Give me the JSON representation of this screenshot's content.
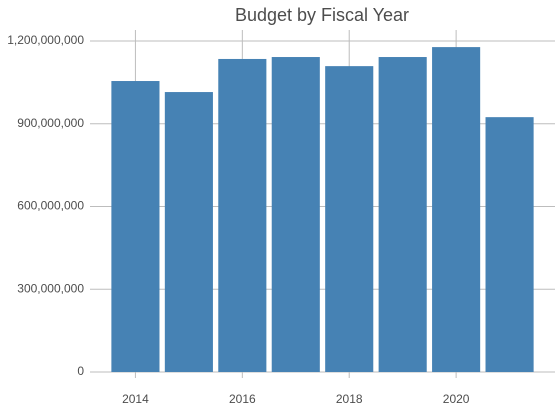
{
  "chart_data": {
    "type": "bar",
    "title": "Budget by Fiscal Year",
    "x": [
      2014,
      2015,
      2016,
      2017,
      2018,
      2019,
      2020,
      2021
    ],
    "values": [
      1055000000,
      1015000000,
      1135000000,
      1142000000,
      1109000000,
      1142000000,
      1178000000,
      924000000
    ],
    "color": "#4682b4",
    "xlim": [
      2013.15,
      2021.85
    ],
    "xticks": [
      2014,
      2016,
      2018,
      2020
    ],
    "ylim": [
      0,
      1240000000
    ],
    "yticks": [
      0,
      {
        "value": 300000000,
        "label": "300,000,000"
      },
      {
        "value": 600000000,
        "label": "600,000,000"
      },
      {
        "value": 900000000,
        "label": "900,000,000"
      },
      {
        "value": 1200000000,
        "label": "1,200,000,000"
      }
    ],
    "grid": true
  }
}
